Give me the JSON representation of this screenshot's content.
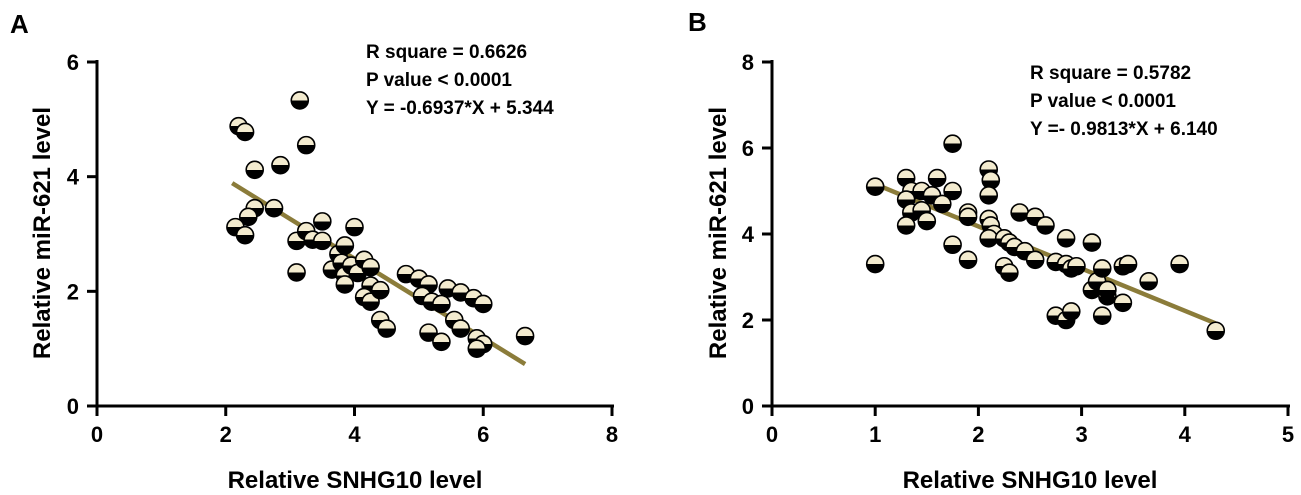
{
  "chart_data": [
    {
      "panel": "A",
      "type": "scatter",
      "xlabel": "Relative SNHG10 level",
      "ylabel": "Relative miR-621 level",
      "xlim": [
        0,
        8
      ],
      "ylim": [
        0,
        6
      ],
      "xticks": [
        "0",
        "2",
        "4",
        "6",
        "8"
      ],
      "yticks": [
        "0",
        "2",
        "4",
        "6"
      ],
      "stats": [
        "R square = 0.6626",
        "P value < 0.0001",
        "Y = -0.6937*X + 5.344"
      ],
      "fit": {
        "slope": -0.6937,
        "intercept": 5.344,
        "x_range": [
          2.1,
          6.65
        ]
      },
      "colors": {
        "fit_line": "#8b7c3a",
        "marker_top": "#f3ebcf",
        "marker_bottom": "#000000"
      },
      "points": [
        [
          2.2,
          4.88
        ],
        [
          2.3,
          4.78
        ],
        [
          3.15,
          5.33
        ],
        [
          3.25,
          4.55
        ],
        [
          2.45,
          4.12
        ],
        [
          2.85,
          4.2
        ],
        [
          2.45,
          3.45
        ],
        [
          2.35,
          3.3
        ],
        [
          2.75,
          3.45
        ],
        [
          2.15,
          3.12
        ],
        [
          2.3,
          2.98
        ],
        [
          3.1,
          2.88
        ],
        [
          3.25,
          3.05
        ],
        [
          3.35,
          2.9
        ],
        [
          3.5,
          2.88
        ],
        [
          3.5,
          3.22
        ],
        [
          4.0,
          3.12
        ],
        [
          3.1,
          2.33
        ],
        [
          3.75,
          2.65
        ],
        [
          3.85,
          2.8
        ],
        [
          3.65,
          2.38
        ],
        [
          3.8,
          2.5
        ],
        [
          3.85,
          2.28
        ],
        [
          3.85,
          2.12
        ],
        [
          3.95,
          2.45
        ],
        [
          4.05,
          2.32
        ],
        [
          4.15,
          2.55
        ],
        [
          4.25,
          2.42
        ],
        [
          4.25,
          2.1
        ],
        [
          4.15,
          1.9
        ],
        [
          4.25,
          1.82
        ],
        [
          4.4,
          2.02
        ],
        [
          4.4,
          1.5
        ],
        [
          4.5,
          1.35
        ],
        [
          4.8,
          2.3
        ],
        [
          5.0,
          2.22
        ],
        [
          5.15,
          2.12
        ],
        [
          5.05,
          1.92
        ],
        [
          5.2,
          1.82
        ],
        [
          5.35,
          1.78
        ],
        [
          5.45,
          2.05
        ],
        [
          5.65,
          1.98
        ],
        [
          5.85,
          1.88
        ],
        [
          6.0,
          1.78
        ],
        [
          5.55,
          1.5
        ],
        [
          5.65,
          1.35
        ],
        [
          5.15,
          1.28
        ],
        [
          5.35,
          1.12
        ],
        [
          5.9,
          1.18
        ],
        [
          6.0,
          1.08
        ],
        [
          5.9,
          1.0
        ],
        [
          6.65,
          1.22
        ]
      ]
    },
    {
      "panel": "B",
      "type": "scatter",
      "xlabel": "Relative SNHG10 level",
      "ylabel": "Relative miR-621 level",
      "xlim": [
        0,
        5
      ],
      "ylim": [
        0,
        8
      ],
      "xticks": [
        "0",
        "1",
        "2",
        "3",
        "4",
        "5"
      ],
      "yticks": [
        "0",
        "2",
        "4",
        "6",
        "8"
      ],
      "stats": [
        "R square = 0.5782",
        "P value < 0.0001",
        "Y =- 0.9813*X + 6.140"
      ],
      "fit": {
        "slope": -0.9813,
        "intercept": 6.14,
        "x_range": [
          1.0,
          4.3
        ]
      },
      "colors": {
        "fit_line": "#8b7c3a",
        "marker_top": "#f3ebcf",
        "marker_bottom": "#000000"
      },
      "points": [
        [
          1.0,
          5.1
        ],
        [
          1.0,
          3.3
        ],
        [
          1.3,
          5.3
        ],
        [
          1.35,
          5.0
        ],
        [
          1.3,
          4.8
        ],
        [
          1.45,
          5.0
        ],
        [
          1.55,
          4.9
        ],
        [
          1.6,
          5.3
        ],
        [
          1.75,
          5.0
        ],
        [
          1.75,
          6.1
        ],
        [
          1.35,
          4.5
        ],
        [
          1.45,
          4.55
        ],
        [
          1.5,
          4.3
        ],
        [
          1.3,
          4.2
        ],
        [
          1.65,
          4.7
        ],
        [
          1.9,
          4.5
        ],
        [
          1.9,
          4.4
        ],
        [
          1.75,
          3.75
        ],
        [
          1.9,
          3.4
        ],
        [
          2.1,
          5.5
        ],
        [
          2.12,
          5.25
        ],
        [
          2.1,
          4.9
        ],
        [
          2.1,
          4.35
        ],
        [
          2.12,
          4.2
        ],
        [
          2.15,
          4.0
        ],
        [
          2.1,
          3.9
        ],
        [
          2.25,
          3.9
        ],
        [
          2.3,
          3.8
        ],
        [
          2.35,
          3.7
        ],
        [
          2.45,
          3.6
        ],
        [
          2.55,
          3.4
        ],
        [
          2.25,
          3.25
        ],
        [
          2.3,
          3.1
        ],
        [
          2.4,
          4.5
        ],
        [
          2.55,
          4.4
        ],
        [
          2.65,
          4.2
        ],
        [
          2.75,
          3.35
        ],
        [
          2.85,
          3.3
        ],
        [
          2.9,
          3.2
        ],
        [
          2.95,
          3.25
        ],
        [
          2.85,
          3.9
        ],
        [
          3.1,
          3.8
        ],
        [
          3.1,
          2.7
        ],
        [
          3.15,
          2.9
        ],
        [
          3.2,
          3.2
        ],
        [
          3.25,
          2.55
        ],
        [
          3.2,
          2.1
        ],
        [
          3.25,
          2.7
        ],
        [
          3.4,
          3.25
        ],
        [
          3.45,
          3.3
        ],
        [
          3.4,
          2.4
        ],
        [
          3.65,
          2.9
        ],
        [
          2.75,
          2.1
        ],
        [
          2.85,
          2.0
        ],
        [
          2.9,
          2.2
        ],
        [
          3.95,
          3.3
        ],
        [
          4.3,
          1.75
        ]
      ]
    }
  ]
}
